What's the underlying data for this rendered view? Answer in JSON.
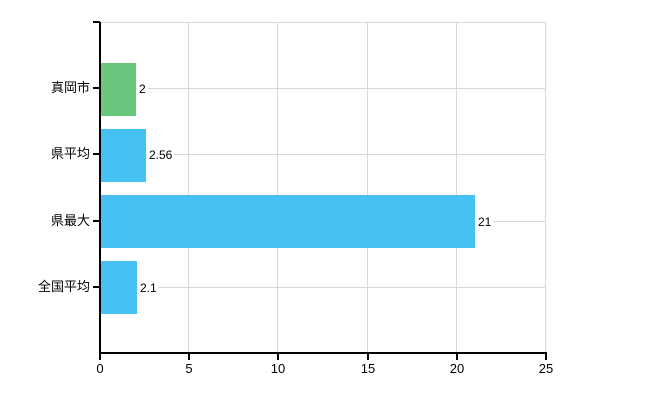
{
  "chart_data": {
    "type": "bar",
    "orientation": "horizontal",
    "categories": [
      "真岡市",
      "県平均",
      "県最大",
      "全国平均"
    ],
    "values": [
      2,
      2.56,
      21,
      2.1
    ],
    "value_labels": [
      "2",
      "2.56",
      "21",
      "2.1"
    ],
    "bar_colors": [
      "#69c87d",
      "#45c2f3",
      "#45c2f3",
      "#45c2f3"
    ],
    "x_tick_labels": [
      "0",
      "5",
      "10",
      "15",
      "20",
      "25"
    ],
    "x_tick_values": [
      0,
      5,
      10,
      15,
      20,
      25
    ],
    "xlim": [
      0,
      25
    ],
    "grid": true,
    "legend": "none",
    "gridline_color": "#d8d8d8",
    "axis_color": "#000000",
    "label_color": "#000000",
    "background_color": "#ffffff"
  }
}
